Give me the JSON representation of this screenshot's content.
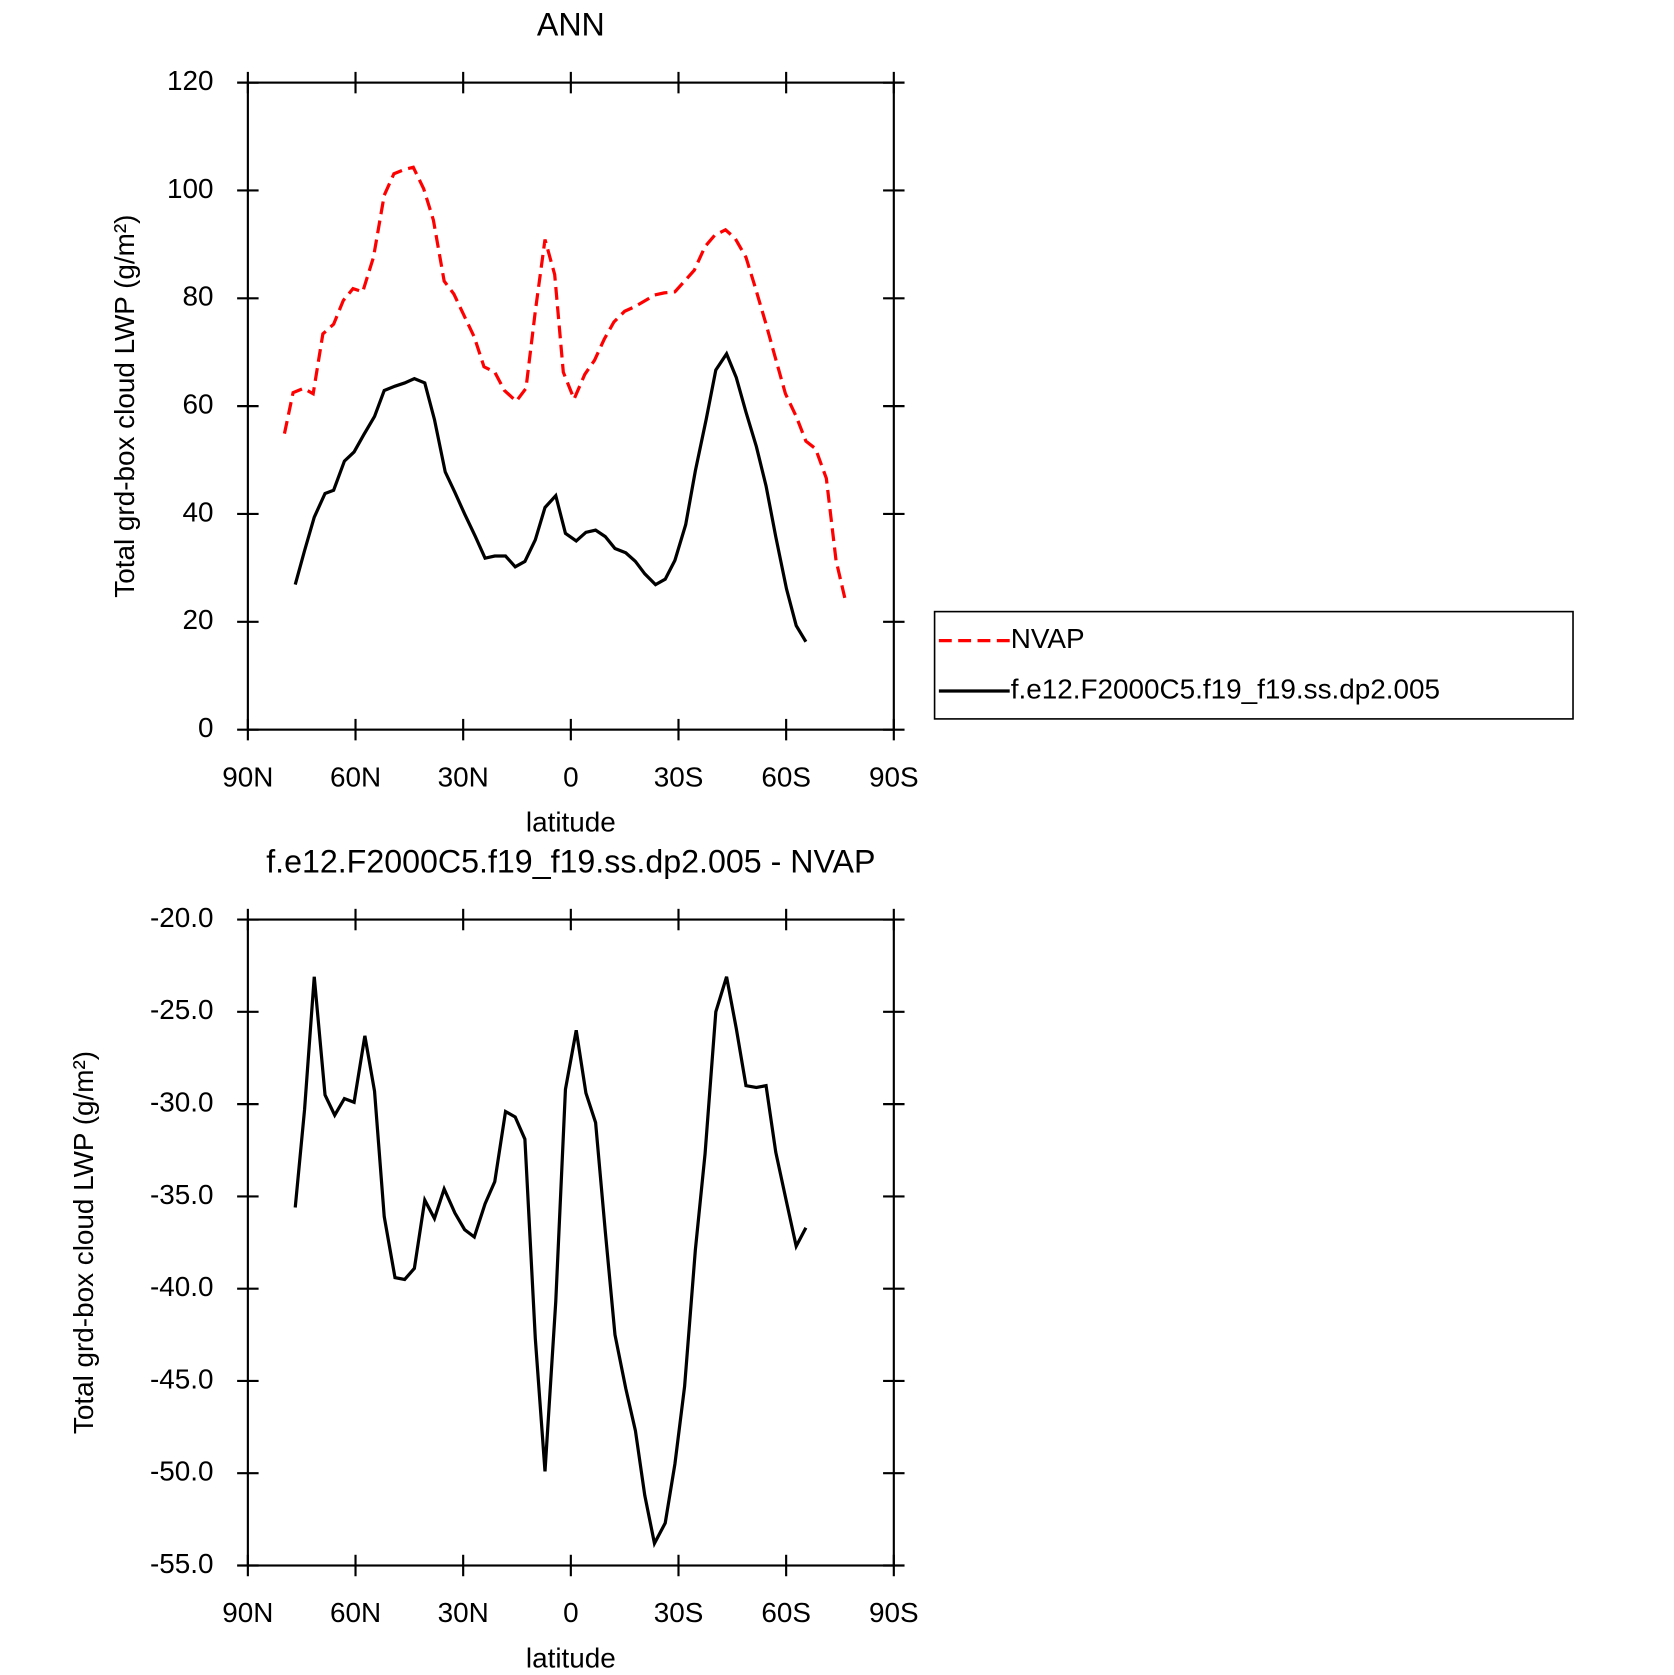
{
  "chart_data": [
    {
      "type": "line",
      "title": "ANN",
      "xlabel": "latitude",
      "ylabel": "Total grd-box cloud LWP (g/m²)",
      "xlim": [
        90,
        -90
      ],
      "xticks": [
        {
          "value": 90,
          "label": "90N"
        },
        {
          "value": 60,
          "label": "60N"
        },
        {
          "value": 30,
          "label": "30N"
        },
        0,
        {
          "value": -30,
          "label": "30S"
        },
        {
          "value": -60,
          "label": "60S"
        },
        {
          "value": -90,
          "label": "90S"
        }
      ],
      "ylim": [
        0,
        120
      ],
      "yticks": [
        0,
        20,
        40,
        60,
        80,
        100,
        120
      ],
      "legend": "right",
      "series": [
        {
          "name": "NVAP",
          "color": "#ff0000",
          "style": "dashed",
          "x": [
            79.8,
            77.4,
            74.5,
            71.8,
            69.1,
            66.1,
            63.4,
            60.7,
            58,
            55,
            52,
            49.3,
            46.3,
            43.9,
            41,
            38.3,
            35.3,
            32.6,
            29.9,
            26.9,
            24.2,
            21.2,
            18.5,
            15.2,
            12.5,
            9.9,
            7.2,
            4.5,
            2.1,
            -0.9,
            -3.9,
            -6.6,
            -9.3,
            -12,
            -15,
            -17.7,
            -20.3,
            -23.3,
            -26,
            -29,
            -31.7,
            -34.4,
            -37.4,
            -40.1,
            -43.1,
            -45.8,
            -48.8,
            -51.4,
            -54.4,
            -57.1,
            -59.8,
            -62.8,
            -65.5,
            -68.2,
            -71.2,
            -73.9,
            -76.6
          ],
          "values": [
            54.9,
            62.5,
            63.3,
            62.3,
            73.4,
            75.2,
            79.6,
            81.8,
            81.2,
            87.6,
            99.1,
            103.1,
            103.9,
            104.3,
            100.3,
            94.5,
            83.2,
            80.8,
            77,
            72.8,
            67.3,
            66.3,
            62.9,
            60.9,
            63.3,
            77.6,
            90.9,
            84.4,
            66.3,
            61.3,
            65.9,
            68.5,
            72.4,
            75.6,
            77.6,
            78.4,
            79.4,
            80.6,
            81,
            81.2,
            83.2,
            85.2,
            89.6,
            91.7,
            92.7,
            91.1,
            87.6,
            82,
            75.2,
            68.7,
            62.3,
            58.1,
            53.5,
            52.1,
            46.6,
            31.4,
            23.7
          ]
        },
        {
          "name": "f.e12.F2000C5.f19_f19.ss.dp2.005",
          "color": "#000000",
          "style": "solid",
          "x": [
            76.8,
            74.2,
            71.5,
            68.5,
            66.1,
            63.1,
            60.4,
            57.7,
            54.7,
            52,
            49,
            46.3,
            43.6,
            40.7,
            38,
            35,
            32.3,
            29.6,
            26.6,
            23.9,
            21.2,
            18.2,
            15.5,
            12.8,
            9.9,
            7.2,
            4.2,
            1.5,
            -1.5,
            -4.2,
            -6.9,
            -9.6,
            -12.3,
            -15.3,
            -18,
            -20.6,
            -23.6,
            -26.3,
            -29,
            -32,
            -34.7,
            -37.7,
            -40.4,
            -43.4,
            -46.1,
            -48.8,
            -51.7,
            -54.4,
            -57.1,
            -60.1,
            -62.8,
            -65.5
          ],
          "values": [
            26.9,
            33.2,
            39.4,
            43.8,
            44.4,
            49.8,
            51.5,
            54.7,
            58.1,
            62.9,
            63.7,
            64.3,
            65.1,
            64.3,
            57.5,
            47.8,
            44,
            40,
            35.8,
            31.8,
            32.2,
            32.2,
            30.2,
            31.2,
            35.2,
            41.2,
            43.4,
            36.4,
            35,
            36.6,
            37,
            35.8,
            33.6,
            32.8,
            31.2,
            28.9,
            26.9,
            27.9,
            31.4,
            38,
            48,
            57.5,
            66.7,
            69.7,
            65.3,
            58.9,
            52.5,
            45.2,
            35.8,
            26.1,
            19.3,
            16.3
          ]
        }
      ]
    },
    {
      "type": "line",
      "title": "f.e12.F2000C5.f19_f19.ss.dp2.005 - NVAP",
      "xlabel": "latitude",
      "ylabel": "Total grd-box cloud LWP (g/m²)",
      "xlim": [
        90,
        -90
      ],
      "xticks": [
        {
          "value": 90,
          "label": "90N"
        },
        {
          "value": 60,
          "label": "60N"
        },
        {
          "value": 30,
          "label": "30N"
        },
        0,
        {
          "value": -30,
          "label": "30S"
        },
        {
          "value": -60,
          "label": "60S"
        },
        {
          "value": -90,
          "label": "90S"
        }
      ],
      "ylim": [
        -55,
        -20
      ],
      "yticks": [
        {
          "value": -55,
          "label": "-55.0"
        },
        {
          "value": -50,
          "label": "-50.0"
        },
        {
          "value": -45,
          "label": "-45.0"
        },
        {
          "value": -40,
          "label": "-40.0"
        },
        {
          "value": -35,
          "label": "-35.0"
        },
        {
          "value": -30,
          "label": "-30.0"
        },
        {
          "value": -25,
          "label": "-25.0"
        },
        {
          "value": -20,
          "label": "-20.0"
        }
      ],
      "series": [
        {
          "color": "#000000",
          "style": "solid",
          "x": [
            76.8,
            74.2,
            71.5,
            68.5,
            65.8,
            63.1,
            60.4,
            57.4,
            54.7,
            52,
            49,
            46.3,
            43.6,
            40.7,
            38,
            35.3,
            32.3,
            29.6,
            26.9,
            23.9,
            21.2,
            18.2,
            15.5,
            12.8,
            9.9,
            7.2,
            4.2,
            1.5,
            -1.5,
            -4.2,
            -6.9,
            -9.6,
            -12.3,
            -15.3,
            -18,
            -20.6,
            -23.3,
            -26.3,
            -29,
            -31.7,
            -34.7,
            -37.4,
            -40.4,
            -43.4,
            -46.1,
            -48.8,
            -51.7,
            -54.4,
            -57.1,
            -60.1,
            -62.8,
            -65.5
          ],
          "values": [
            -35.6,
            -30.3,
            -23.1,
            -29.5,
            -30.6,
            -29.7,
            -29.9,
            -26.3,
            -29.3,
            -36.1,
            -39.4,
            -39.5,
            -38.9,
            -35.2,
            -36.2,
            -34.6,
            -35.9,
            -36.8,
            -37.2,
            -35.4,
            -34.2,
            -30.4,
            -30.7,
            -31.9,
            -42.7,
            -49.9,
            -40.7,
            -29.2,
            -26,
            -29.4,
            -31,
            -36.9,
            -42.5,
            -45.4,
            -47.7,
            -51.2,
            -53.8,
            -52.7,
            -49.5,
            -45.3,
            -37.9,
            -32.7,
            -25,
            -23.1,
            -25.9,
            -29,
            -29.1,
            -29,
            -32.6,
            -35.3,
            -37.7,
            -36.7
          ]
        }
      ]
    }
  ]
}
